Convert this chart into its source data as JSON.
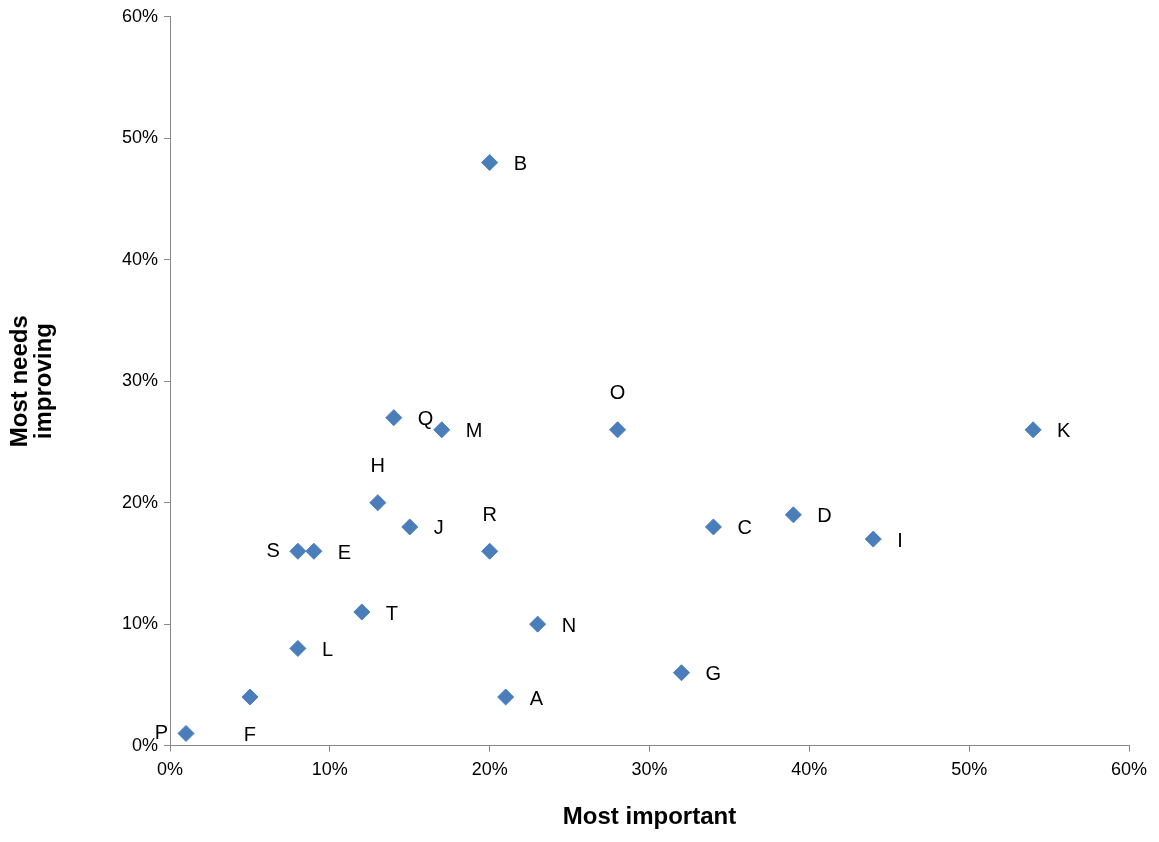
{
  "chart_data": {
    "type": "scatter",
    "xlabel": "Most important",
    "ylabel": "Most needs improving",
    "x": [
      20,
      28,
      54,
      14,
      17,
      13,
      15,
      20,
      34,
      39,
      44,
      8,
      9,
      12,
      23,
      8,
      32,
      21,
      5,
      1
    ],
    "values": [
      48,
      26,
      26,
      27,
      26,
      20,
      18,
      16,
      18,
      19,
      17,
      16,
      16,
      11,
      10,
      8,
      6,
      4,
      4,
      1
    ],
    "color": "#4a7ebb",
    "marker": "diamond",
    "grid": false,
    "legend": false,
    "xlim": [
      0,
      60
    ],
    "ylim": [
      0,
      60
    ],
    "xticks": [
      {
        "value": 0,
        "label": "0%"
      },
      {
        "value": 10,
        "label": "10%"
      },
      {
        "value": 20,
        "label": "20%"
      },
      {
        "value": 30,
        "label": "30%"
      },
      {
        "value": 40,
        "label": "40%"
      },
      {
        "value": 50,
        "label": "50%"
      },
      {
        "value": 60,
        "label": "60%"
      }
    ],
    "yticks": [
      {
        "value": 0,
        "label": "0%"
      },
      {
        "value": 10,
        "label": "10%"
      },
      {
        "value": 20,
        "label": "20%"
      },
      {
        "value": 30,
        "label": "30%"
      },
      {
        "value": 40,
        "label": "40%"
      },
      {
        "value": 50,
        "label": "50%"
      },
      {
        "value": 60,
        "label": "60%"
      }
    ],
    "annotations": [
      {
        "text": "B",
        "x": 20,
        "y": 48
      },
      {
        "text": "O",
        "x": 28,
        "y": 26
      },
      {
        "text": "K",
        "x": 54,
        "y": 26
      },
      {
        "text": "Q",
        "x": 14,
        "y": 27
      },
      {
        "text": "M",
        "x": 17,
        "y": 26
      },
      {
        "text": "H",
        "x": 13,
        "y": 20
      },
      {
        "text": "J",
        "x": 15,
        "y": 18
      },
      {
        "text": "R",
        "x": 20,
        "y": 16
      },
      {
        "text": "C",
        "x": 34,
        "y": 18
      },
      {
        "text": "D",
        "x": 39,
        "y": 19
      },
      {
        "text": "I",
        "x": 44,
        "y": 17
      },
      {
        "text": "S",
        "x": 8,
        "y": 16
      },
      {
        "text": "E",
        "x": 9,
        "y": 16
      },
      {
        "text": "T",
        "x": 12,
        "y": 11
      },
      {
        "text": "N",
        "x": 23,
        "y": 10
      },
      {
        "text": "L",
        "x": 8,
        "y": 8
      },
      {
        "text": "G",
        "x": 32,
        "y": 6
      },
      {
        "text": "A",
        "x": 21,
        "y": 4
      },
      {
        "text": "F",
        "x": 5,
        "y": 4
      },
      {
        "text": "P",
        "x": 1,
        "y": 1
      }
    ]
  }
}
